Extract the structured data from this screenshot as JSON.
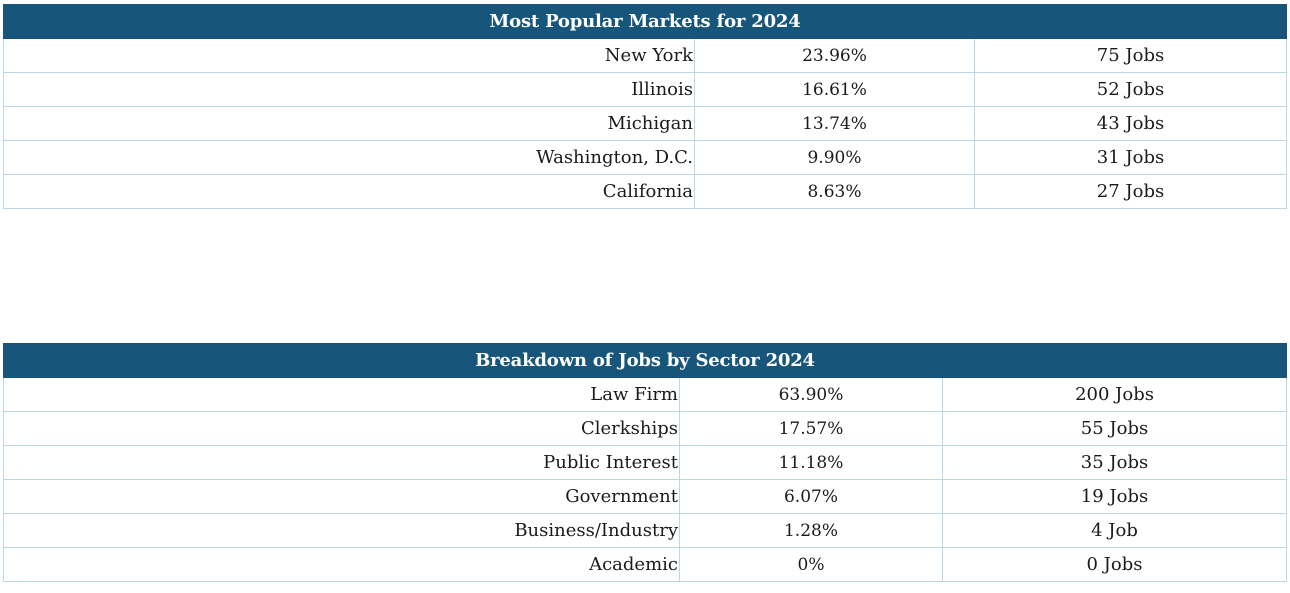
{
  "markets": {
    "title": "Most Popular Markets for 2024",
    "rows": [
      {
        "name": "New York",
        "percent": "23.96%",
        "jobs": "75 Jobs"
      },
      {
        "name": "Illinois",
        "percent": "16.61%",
        "jobs": "52 Jobs"
      },
      {
        "name": "Michigan",
        "percent": "13.74%",
        "jobs": "43 Jobs"
      },
      {
        "name": "Washington, D.C.",
        "percent": "9.90%",
        "jobs": "31 Jobs"
      },
      {
        "name": "California",
        "percent": "8.63%",
        "jobs": "27 Jobs"
      }
    ]
  },
  "sectors": {
    "title": "Breakdown of Jobs by Sector 2024",
    "rows": [
      {
        "name": "Law Firm",
        "percent": "63.90%",
        "jobs": "200 Jobs"
      },
      {
        "name": "Clerkships",
        "percent": "17.57%",
        "jobs": "55 Jobs"
      },
      {
        "name": "Public Interest",
        "percent": "11.18%",
        "jobs": "35 Jobs"
      },
      {
        "name": "Government",
        "percent": "6.07%",
        "jobs": "19 Jobs"
      },
      {
        "name": "Business/Industry",
        "percent": "1.28%",
        "jobs": "4 Job"
      },
      {
        "name": "Academic",
        "percent": "0%",
        "jobs": "0 Jobs"
      }
    ]
  },
  "colors": {
    "header_bg": "#17557a",
    "header_text": "#ffffff",
    "grid_line": "#bcd7e3"
  }
}
